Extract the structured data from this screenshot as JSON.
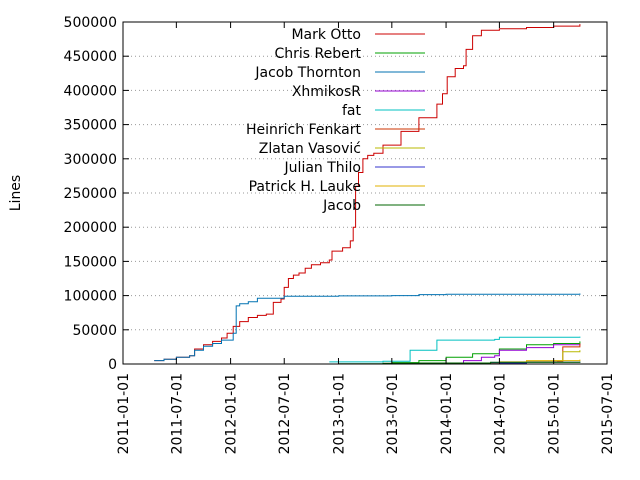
{
  "chart_data": {
    "type": "line",
    "title": "",
    "xlabel": "",
    "ylabel": "Lines",
    "ylim": [
      0,
      500000
    ],
    "xlim": [
      "2011-01-01",
      "2015-07-01"
    ],
    "yticks": [
      0,
      50000,
      100000,
      150000,
      200000,
      250000,
      300000,
      350000,
      400000,
      450000,
      500000
    ],
    "yticklabels": [
      "0",
      "50000",
      "100000",
      "150000",
      "200000",
      "250000",
      "300000",
      "350000",
      "400000",
      "450000",
      "500000"
    ],
    "xticks": [
      "2011-01-01",
      "2011-07-01",
      "2012-01-01",
      "2012-07-01",
      "2013-01-01",
      "2013-07-01",
      "2014-01-01",
      "2014-07-01",
      "2015-01-01",
      "2015-07-01"
    ],
    "grid": "horizontal dotted",
    "legend": "top-right",
    "series": [
      {
        "name": "Mark Otto",
        "color": "#cc0000",
        "points": [
          [
            "2011-04-17",
            5000
          ],
          [
            "2011-05-20",
            7000
          ],
          [
            "2011-07-01",
            10000
          ],
          [
            "2011-08-15",
            12000
          ],
          [
            "2011-09-01",
            22000
          ],
          [
            "2011-10-01",
            28000
          ],
          [
            "2011-11-01",
            33000
          ],
          [
            "2011-12-01",
            38000
          ],
          [
            "2011-12-20",
            45000
          ],
          [
            "2012-01-10",
            55000
          ],
          [
            "2012-02-01",
            62000
          ],
          [
            "2012-03-01",
            68000
          ],
          [
            "2012-04-01",
            71000
          ],
          [
            "2012-05-01",
            73000
          ],
          [
            "2012-05-25",
            90000
          ],
          [
            "2012-06-20",
            95000
          ],
          [
            "2012-07-01",
            112000
          ],
          [
            "2012-07-15",
            125000
          ],
          [
            "2012-08-01",
            130000
          ],
          [
            "2012-08-20",
            133000
          ],
          [
            "2012-09-10",
            140000
          ],
          [
            "2012-10-01",
            145000
          ],
          [
            "2012-11-01",
            148000
          ],
          [
            "2012-12-01",
            152000
          ],
          [
            "2012-12-10",
            165000
          ],
          [
            "2013-01-15",
            170000
          ],
          [
            "2013-02-10",
            180000
          ],
          [
            "2013-02-20",
            200000
          ],
          [
            "2013-02-28",
            260000
          ],
          [
            "2013-03-10",
            280000
          ],
          [
            "2013-03-25",
            300000
          ],
          [
            "2013-04-10",
            305000
          ],
          [
            "2013-05-01",
            308000
          ],
          [
            "2013-06-01",
            320000
          ],
          [
            "2013-08-01",
            340000
          ],
          [
            "2013-10-01",
            360000
          ],
          [
            "2013-12-01",
            380000
          ],
          [
            "2013-12-20",
            395000
          ],
          [
            "2014-01-05",
            420000
          ],
          [
            "2014-02-01",
            432000
          ],
          [
            "2014-03-01",
            436000
          ],
          [
            "2014-03-10",
            460000
          ],
          [
            "2014-04-01",
            480000
          ],
          [
            "2014-05-01",
            488000
          ],
          [
            "2014-07-01",
            490000
          ],
          [
            "2014-10-01",
            492000
          ],
          [
            "2015-01-01",
            494000
          ],
          [
            "2015-03-31",
            497000
          ]
        ]
      },
      {
        "name": "Chris Rebert",
        "color": "#00a000",
        "points": [
          [
            "2013-07-01",
            2000
          ],
          [
            "2013-10-01",
            5000
          ],
          [
            "2014-01-01",
            10000
          ],
          [
            "2014-04-01",
            15000
          ],
          [
            "2014-07-01",
            22000
          ],
          [
            "2014-10-01",
            28000
          ],
          [
            "2015-01-01",
            30000
          ],
          [
            "2015-03-31",
            33000
          ]
        ]
      },
      {
        "name": "Jacob Thornton",
        "color": "#0072b2",
        "points": [
          [
            "2011-04-17",
            5000
          ],
          [
            "2011-05-20",
            7000
          ],
          [
            "2011-07-01",
            10000
          ],
          [
            "2011-08-15",
            12000
          ],
          [
            "2011-09-01",
            20000
          ],
          [
            "2011-10-01",
            26000
          ],
          [
            "2011-11-01",
            30000
          ],
          [
            "2011-12-01",
            35000
          ],
          [
            "2012-01-10",
            45000
          ],
          [
            "2012-01-20",
            85000
          ],
          [
            "2012-02-01",
            88000
          ],
          [
            "2012-03-01",
            91000
          ],
          [
            "2012-04-01",
            96000
          ],
          [
            "2012-07-01",
            99000
          ],
          [
            "2013-01-01",
            99500
          ],
          [
            "2013-07-01",
            100000
          ],
          [
            "2013-10-01",
            101500
          ],
          [
            "2014-01-01",
            102000
          ],
          [
            "2014-07-01",
            102000
          ],
          [
            "2015-03-31",
            103000
          ]
        ]
      },
      {
        "name": "XhmikosR",
        "color": "#9400d3",
        "points": [
          [
            "2013-12-01",
            1000
          ],
          [
            "2014-03-01",
            5000
          ],
          [
            "2014-05-01",
            10000
          ],
          [
            "2014-06-15",
            12000
          ],
          [
            "2014-07-01",
            20000
          ],
          [
            "2014-10-01",
            24000
          ],
          [
            "2015-01-01",
            28000
          ],
          [
            "2015-03-31",
            30000
          ]
        ]
      },
      {
        "name": "fat",
        "color": "#00c0c0",
        "points": [
          [
            "2012-12-01",
            3000
          ],
          [
            "2013-06-01",
            4000
          ],
          [
            "2013-09-01",
            20000
          ],
          [
            "2013-12-01",
            35000
          ],
          [
            "2014-06-15",
            36000
          ],
          [
            "2014-07-01",
            39000
          ],
          [
            "2015-03-31",
            40000
          ]
        ]
      },
      {
        "name": "Heinrich Fenkart",
        "color": "#cc3300",
        "points": [
          [
            "2014-01-01",
            1000
          ],
          [
            "2014-06-01",
            2000
          ],
          [
            "2014-10-01",
            3000
          ],
          [
            "2015-01-15",
            4000
          ],
          [
            "2015-02-01",
            25000
          ],
          [
            "2015-03-31",
            30000
          ]
        ]
      },
      {
        "name": "Zlatan Vasović",
        "color": "#b8b800",
        "points": [
          [
            "2014-01-01",
            500
          ],
          [
            "2014-06-01",
            1500
          ],
          [
            "2014-10-01",
            3000
          ],
          [
            "2015-01-01",
            5000
          ],
          [
            "2015-02-01",
            18000
          ],
          [
            "2015-03-31",
            20000
          ]
        ]
      },
      {
        "name": "Julian Thilo",
        "color": "#3333cc",
        "points": [
          [
            "2013-10-01",
            500
          ],
          [
            "2014-04-01",
            1500
          ],
          [
            "2014-10-01",
            2500
          ],
          [
            "2015-03-31",
            3500
          ]
        ]
      },
      {
        "name": "Patrick H. Lauke",
        "color": "#e0b000",
        "points": [
          [
            "2014-01-01",
            500
          ],
          [
            "2014-07-01",
            3000
          ],
          [
            "2014-10-01",
            5000
          ],
          [
            "2015-03-31",
            6500
          ]
        ]
      },
      {
        "name": "Jacob",
        "color": "#006600",
        "points": [
          [
            "2013-01-01",
            500
          ],
          [
            "2013-06-01",
            1000
          ],
          [
            "2013-10-01",
            1500
          ],
          [
            "2014-06-01",
            2500
          ],
          [
            "2015-03-31",
            3500
          ]
        ]
      }
    ]
  }
}
